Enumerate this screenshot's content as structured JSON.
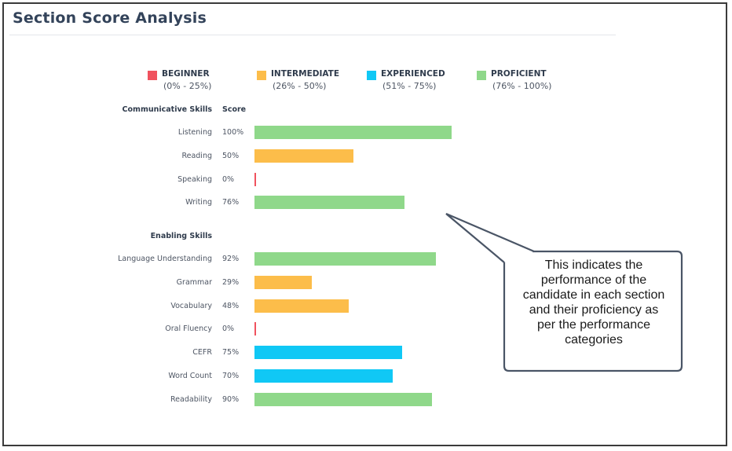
{
  "page": {
    "title": "Section Score Analysis"
  },
  "legend": [
    {
      "name": "BEGINNER",
      "range": "(0% - 25%)",
      "color": "#f0525e"
    },
    {
      "name": "INTERMEDIATE",
      "range": "(26% - 50%)",
      "color": "#fcbd4a"
    },
    {
      "name": "EXPERIENCED",
      "range": "(51% - 75%)",
      "color": "#10c8f5"
    },
    {
      "name": "PROFICIENT",
      "range": "(76% - 100%)",
      "color": "#8fd88a"
    }
  ],
  "headers": {
    "communicative": "Communicative Skills",
    "enabling": "Enabling Skills",
    "score": "Score"
  },
  "callout": {
    "text": "This indicates the\nperformance of the\ncandidate in each section\nand their proficiency as\nper the performance\ncategories"
  },
  "chart_data": {
    "type": "bar",
    "orientation": "horizontal",
    "title": "Section Score Analysis",
    "xlim": [
      0,
      100
    ],
    "groups": [
      {
        "name": "Communicative Skills",
        "categories": [
          "Listening",
          "Reading",
          "Speaking",
          "Writing"
        ],
        "values": [
          100,
          50,
          0,
          76
        ],
        "labels": [
          "100%",
          "50%",
          "0%",
          "76%"
        ],
        "colors": [
          "#8fd88a",
          "#fcbd4a",
          "#f0525e",
          "#8fd88a"
        ]
      },
      {
        "name": "Enabling Skills",
        "categories": [
          "Language Understanding",
          "Grammar",
          "Vocabulary",
          "Oral Fluency",
          "CEFR",
          "Word Count",
          "Readability"
        ],
        "values": [
          92,
          29,
          48,
          0,
          75,
          70,
          90
        ],
        "labels": [
          "92%",
          "29%",
          "48%",
          "0%",
          "75%",
          "70%",
          "90%"
        ],
        "colors": [
          "#8fd88a",
          "#fcbd4a",
          "#fcbd4a",
          "#f0525e",
          "#10c8f5",
          "#10c8f5",
          "#8fd88a"
        ]
      }
    ],
    "legend": [
      "BEGINNER",
      "INTERMEDIATE",
      "EXPERIENCED",
      "PROFICIENT"
    ],
    "legend_position": "top"
  }
}
